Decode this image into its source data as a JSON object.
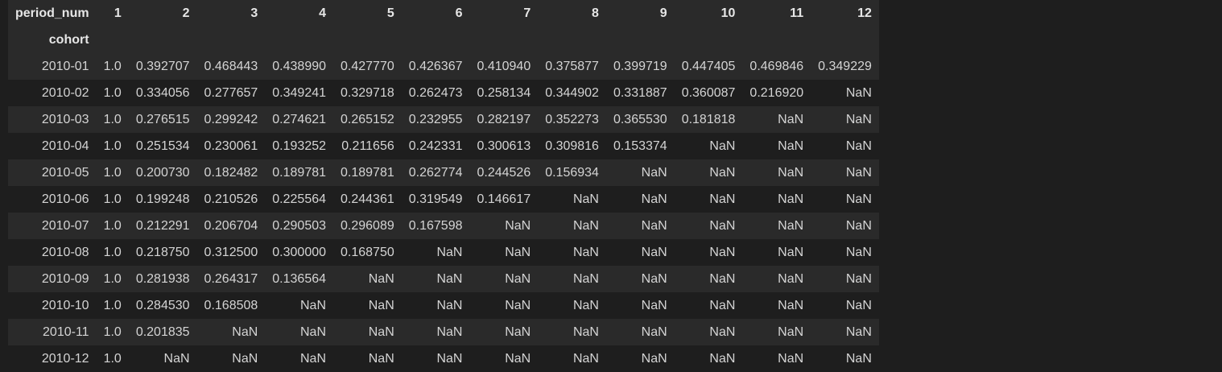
{
  "table": {
    "columns_name": "period_num",
    "index_name": "cohort",
    "columns": [
      "1",
      "2",
      "3",
      "4",
      "5",
      "6",
      "7",
      "8",
      "9",
      "10",
      "11",
      "12"
    ],
    "rows": [
      {
        "index": "2010-01",
        "values": [
          "1.0",
          "0.392707",
          "0.468443",
          "0.438990",
          "0.427770",
          "0.426367",
          "0.410940",
          "0.375877",
          "0.399719",
          "0.447405",
          "0.469846",
          "0.349229"
        ]
      },
      {
        "index": "2010-02",
        "values": [
          "1.0",
          "0.334056",
          "0.277657",
          "0.349241",
          "0.329718",
          "0.262473",
          "0.258134",
          "0.344902",
          "0.331887",
          "0.360087",
          "0.216920",
          "NaN"
        ]
      },
      {
        "index": "2010-03",
        "values": [
          "1.0",
          "0.276515",
          "0.299242",
          "0.274621",
          "0.265152",
          "0.232955",
          "0.282197",
          "0.352273",
          "0.365530",
          "0.181818",
          "NaN",
          "NaN"
        ]
      },
      {
        "index": "2010-04",
        "values": [
          "1.0",
          "0.251534",
          "0.230061",
          "0.193252",
          "0.211656",
          "0.242331",
          "0.300613",
          "0.309816",
          "0.153374",
          "NaN",
          "NaN",
          "NaN"
        ]
      },
      {
        "index": "2010-05",
        "values": [
          "1.0",
          "0.200730",
          "0.182482",
          "0.189781",
          "0.189781",
          "0.262774",
          "0.244526",
          "0.156934",
          "NaN",
          "NaN",
          "NaN",
          "NaN"
        ]
      },
      {
        "index": "2010-06",
        "values": [
          "1.0",
          "0.199248",
          "0.210526",
          "0.225564",
          "0.244361",
          "0.319549",
          "0.146617",
          "NaN",
          "NaN",
          "NaN",
          "NaN",
          "NaN"
        ]
      },
      {
        "index": "2010-07",
        "values": [
          "1.0",
          "0.212291",
          "0.206704",
          "0.290503",
          "0.296089",
          "0.167598",
          "NaN",
          "NaN",
          "NaN",
          "NaN",
          "NaN",
          "NaN"
        ]
      },
      {
        "index": "2010-08",
        "values": [
          "1.0",
          "0.218750",
          "0.312500",
          "0.300000",
          "0.168750",
          "NaN",
          "NaN",
          "NaN",
          "NaN",
          "NaN",
          "NaN",
          "NaN"
        ]
      },
      {
        "index": "2010-09",
        "values": [
          "1.0",
          "0.281938",
          "0.264317",
          "0.136564",
          "NaN",
          "NaN",
          "NaN",
          "NaN",
          "NaN",
          "NaN",
          "NaN",
          "NaN"
        ]
      },
      {
        "index": "2010-10",
        "values": [
          "1.0",
          "0.284530",
          "0.168508",
          "NaN",
          "NaN",
          "NaN",
          "NaN",
          "NaN",
          "NaN",
          "NaN",
          "NaN",
          "NaN"
        ]
      },
      {
        "index": "2010-11",
        "values": [
          "1.0",
          "0.201835",
          "NaN",
          "NaN",
          "NaN",
          "NaN",
          "NaN",
          "NaN",
          "NaN",
          "NaN",
          "NaN",
          "NaN"
        ]
      },
      {
        "index": "2010-12",
        "values": [
          "1.0",
          "NaN",
          "NaN",
          "NaN",
          "NaN",
          "NaN",
          "NaN",
          "NaN",
          "NaN",
          "NaN",
          "NaN",
          "NaN"
        ]
      }
    ]
  }
}
